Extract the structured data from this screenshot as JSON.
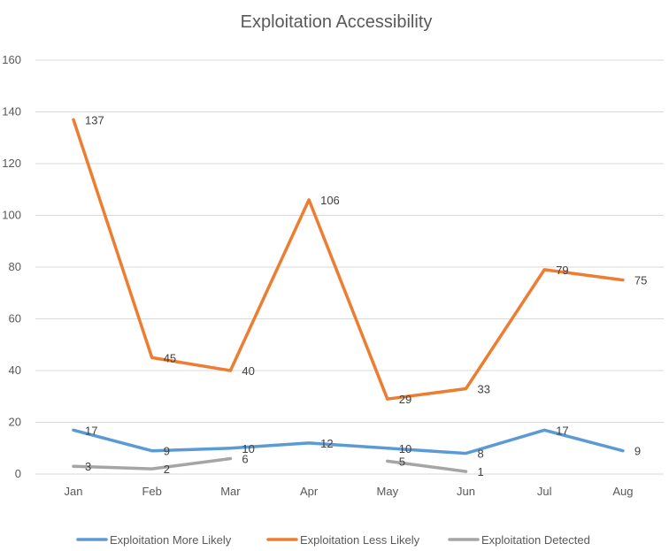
{
  "chart_data": {
    "type": "line",
    "title": "Exploitation Accessibility",
    "xlabel": "",
    "ylabel": "",
    "ylim": [
      0,
      160
    ],
    "yticks": [
      0,
      20,
      40,
      60,
      80,
      100,
      120,
      140,
      160
    ],
    "grid": true,
    "legend_position": "bottom",
    "categories": [
      "Jan",
      "Feb",
      "Mar",
      "Apr",
      "May",
      "Jun",
      "Jul",
      "Aug"
    ],
    "series": [
      {
        "name": "Exploitation More Likely",
        "color": "#5b9bd5",
        "values": [
          17,
          9,
          10,
          12,
          10,
          8,
          17,
          9
        ]
      },
      {
        "name": "Exploitation Less Likely",
        "color": "#ed7d31",
        "values": [
          137,
          45,
          40,
          106,
          29,
          33,
          79,
          75
        ]
      },
      {
        "name": "Exploitation Detected",
        "color": "#a5a5a5",
        "values": [
          3,
          2,
          6,
          null,
          5,
          1,
          null,
          null
        ]
      }
    ]
  }
}
